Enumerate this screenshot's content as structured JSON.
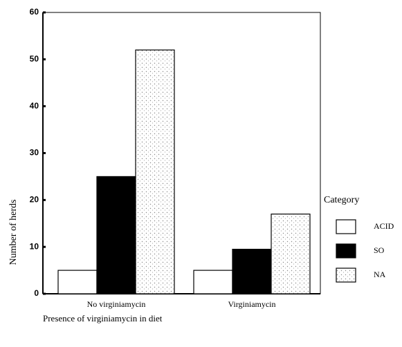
{
  "chart_data": {
    "type": "bar",
    "x_label": "Presence of virginiamycin in diet",
    "y_label": "Number of herds",
    "legend_title": "Category",
    "categories": [
      "No virginiamycin",
      "Virginiamycin"
    ],
    "series": [
      {
        "name": "ACID",
        "color": "#ffffff",
        "values": [
          5,
          5
        ]
      },
      {
        "name": "SO",
        "color": "#000000",
        "values": [
          25,
          9.5
        ]
      },
      {
        "name": "NA",
        "color": "#c8c8c8",
        "values": [
          52,
          17
        ]
      }
    ],
    "ylim": [
      0,
      60
    ],
    "yticks": [
      0,
      10,
      20,
      30,
      40,
      50,
      60
    ],
    "legend": "right"
  }
}
